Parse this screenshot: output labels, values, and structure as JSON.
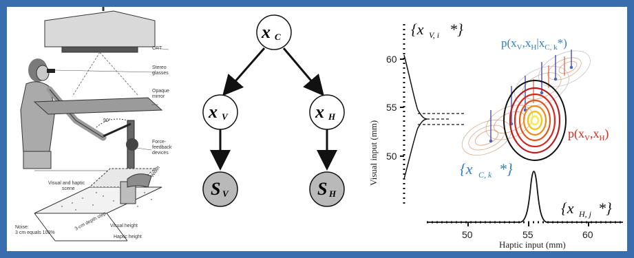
{
  "panel_a": {
    "labels": {
      "crt": "CRT",
      "stereo_1": "Stereo",
      "stereo_2": "glasses",
      "mirror_1": "Opaque",
      "mirror_2": "mirror",
      "force_1": "Force-",
      "force_2": "feedback",
      "force_3": "devices",
      "angle": "90°",
      "scene_1": "Visual and haptic",
      "scene_2": "scene",
      "width": "Width",
      "noise_1": "Noise:",
      "noise_2": "3 cm equals 100%",
      "step": "3-cm depth step",
      "visual_height": "Visual height",
      "haptic_height": "Haptic height"
    }
  },
  "panel_b": {
    "nodes": {
      "xc": "x",
      "xc_sub": "C",
      "xv": "x",
      "xv_sub": "V",
      "xh": "x",
      "xh_sub": "H",
      "sv": "S",
      "sv_sub": "V",
      "sh": "S",
      "sh_sub": "H"
    }
  },
  "panel_c": {
    "ylabel": "Visual input (mm)",
    "xlabel": "Haptic input (mm)",
    "yticks": [
      "60",
      "55",
      "50"
    ],
    "xticks": [
      "50",
      "55",
      "60"
    ],
    "visual_set": "{x",
    "visual_set_sub": "V, i",
    "visual_set_star": "*}",
    "haptic_set": "{x",
    "haptic_set_sub": "H, j",
    "haptic_set_star": "*}",
    "cond_set": "{x",
    "cond_set_sub": "C, k",
    "cond_set_star": "*}",
    "posterior_1": "p(x",
    "posterior_2": "V",
    "posterior_3": ",x",
    "posterior_4": "H",
    "posterior_5": "|x",
    "posterior_6": "C, k",
    "posterior_7": "*)",
    "joint_1": "p(x",
    "joint_2": "V",
    "joint_3": ",x",
    "joint_4": "H",
    "joint_5": ")",
    "colors": {
      "blue": "#2f7fc1",
      "red": "#d9261c",
      "axis": "#111111"
    }
  }
}
